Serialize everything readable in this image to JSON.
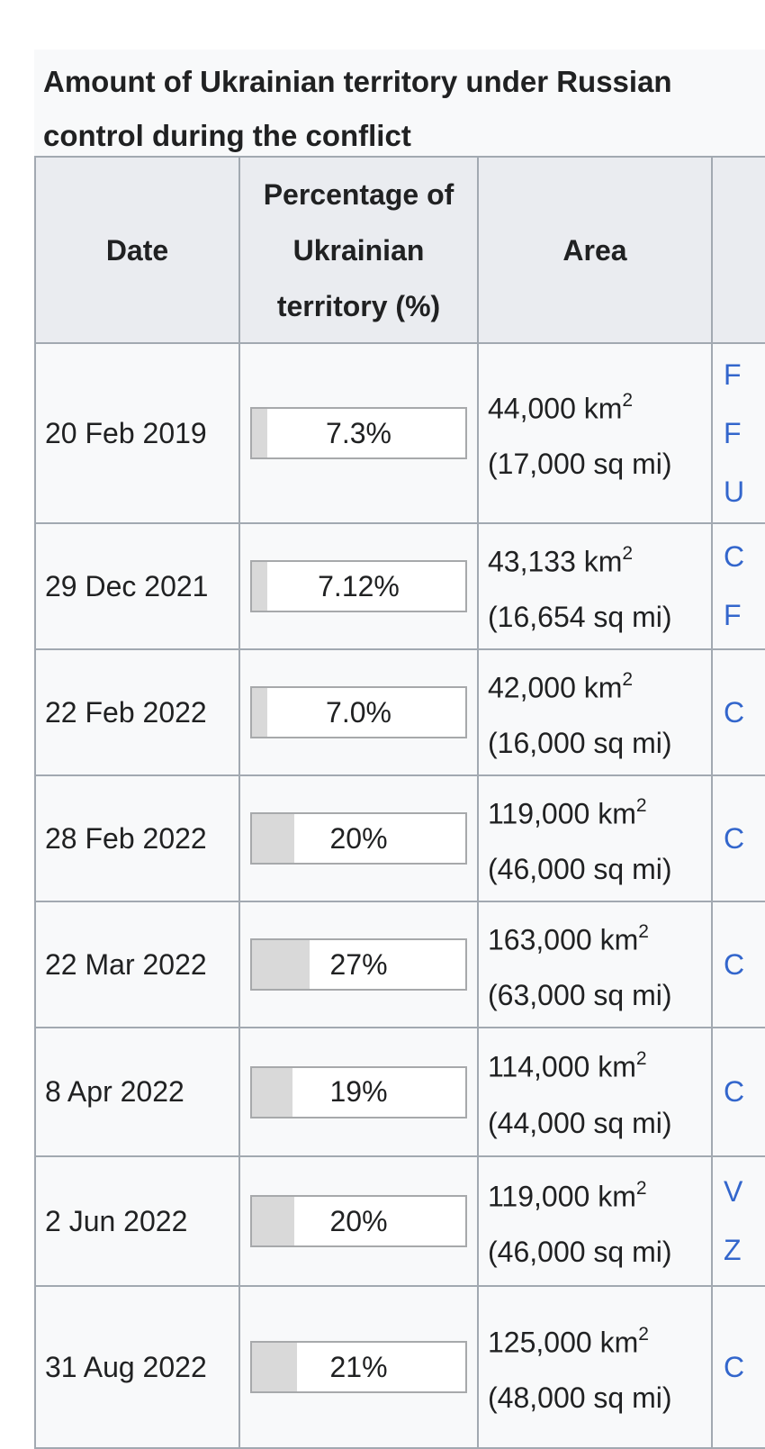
{
  "title": "Amount of Ukrainian territory under Russian control during the conflict",
  "colors": {
    "header_bg": "#eaecf0",
    "cell_bg": "#f8f9fa",
    "border": "#a2a9b1",
    "link_blue": "#3366cc",
    "bar_fill": "#d9d9d9",
    "text": "#202122"
  },
  "table": {
    "columns": [
      "Date",
      "Percentage of Ukrainian territory (%)",
      "Area",
      ""
    ],
    "area_unit": " km",
    "area_sup": "2",
    "rows": [
      {
        "date": "20 Feb 2019",
        "pct_label": "7.3%",
        "pct_value": 7.3,
        "area_km": "44,000",
        "area_mi": "(17,000 sq mi)",
        "sources": [
          "F",
          "F",
          "U"
        ]
      },
      {
        "date": "29 Dec 2021",
        "pct_label": "7.12%",
        "pct_value": 7.12,
        "area_km": "43,133",
        "area_mi": "(16,654 sq mi)",
        "sources": [
          "C",
          "F"
        ]
      },
      {
        "date": "22 Feb 2022",
        "pct_label": "7.0%",
        "pct_value": 7.0,
        "area_km": "42,000",
        "area_mi": "(16,000 sq mi)",
        "sources": [
          "C"
        ]
      },
      {
        "date": "28 Feb 2022",
        "pct_label": "20%",
        "pct_value": 20,
        "area_km": "119,000",
        "area_mi": "(46,000 sq mi)",
        "sources": [
          "C"
        ]
      },
      {
        "date": "22 Mar 2022",
        "pct_label": "27%",
        "pct_value": 27,
        "area_km": "163,000",
        "area_mi": "(63,000 sq mi)",
        "sources": [
          "C"
        ]
      },
      {
        "date": "8 Apr 2022",
        "pct_label": "19%",
        "pct_value": 19,
        "area_km": "114,000",
        "area_mi": "(44,000 sq mi)",
        "sources": [
          "C"
        ]
      },
      {
        "date": "2 Jun 2022",
        "pct_label": "20%",
        "pct_value": 20,
        "area_km": "119,000",
        "area_mi": "(46,000 sq mi)",
        "sources": [
          "V",
          "Z"
        ]
      },
      {
        "date": "31 Aug 2022",
        "pct_label": "21%",
        "pct_value": 21,
        "area_km": "125,000",
        "area_mi": "(48,000 sq mi)",
        "sources": [
          "C"
        ]
      }
    ]
  }
}
